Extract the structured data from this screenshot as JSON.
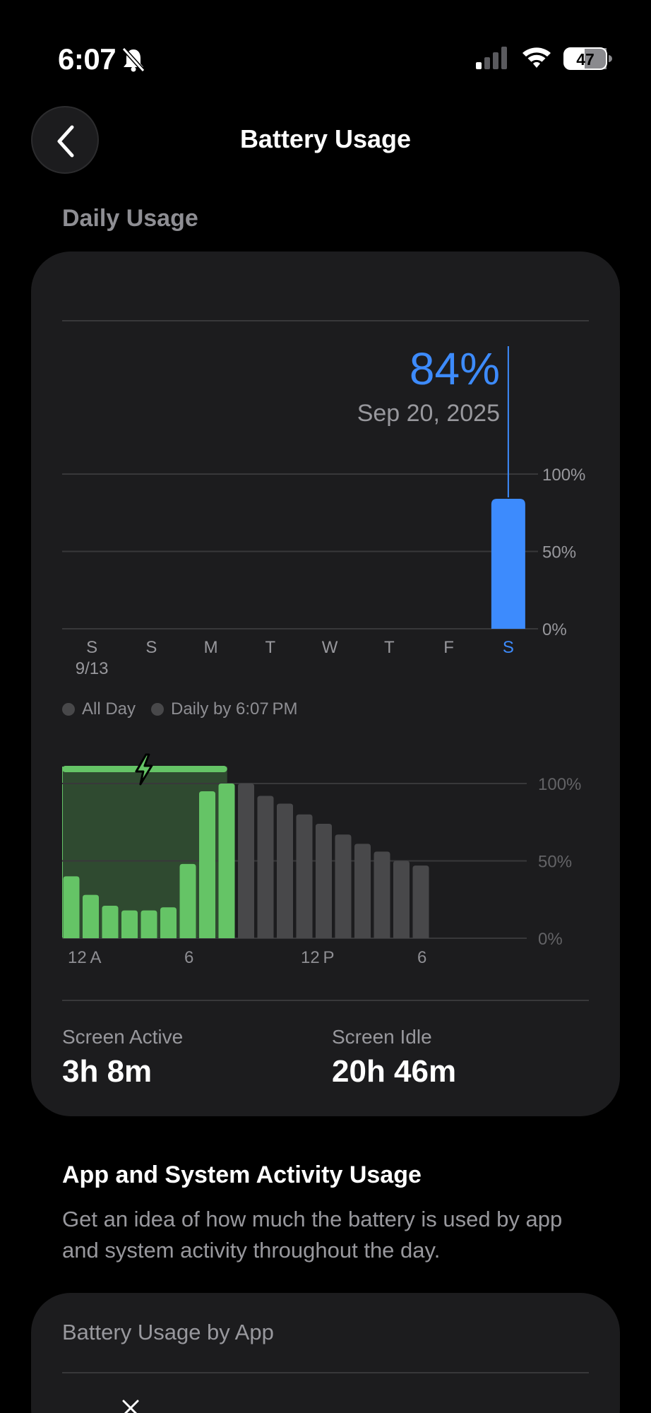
{
  "status_bar": {
    "time": "6:07",
    "battery_level": "47"
  },
  "nav": {
    "title": "Battery Usage"
  },
  "daily_usage": {
    "header": "Daily Usage",
    "tooltip": {
      "value": "84%",
      "date": "Sep 20, 2025"
    },
    "legend": {
      "all_day": "All Day",
      "daily_by": "Daily by 6:07 PM"
    },
    "screen_active": {
      "label": "Screen Active",
      "value": "3h 8m"
    },
    "screen_idle": {
      "label": "Screen Idle",
      "value": "20h 46m"
    }
  },
  "activity": {
    "title": "App and System Activity Usage",
    "description": "Get an idea of how much the battery is used by app and system activity throughout the day."
  },
  "app_usage": {
    "title": "Battery Usage by App"
  },
  "colors": {
    "accent_blue": "#3d8bfd",
    "charging_green": "#65c466",
    "bar_gray": "#48484a",
    "card_bg": "#1c1c1e"
  },
  "chart_data": [
    {
      "type": "bar",
      "categories": [
        "S",
        "S",
        "M",
        "T",
        "W",
        "T",
        "F",
        "S"
      ],
      "sub_labels": [
        "9/13",
        "",
        "",
        "",
        "",
        "",
        "",
        ""
      ],
      "values": [
        0,
        0,
        0,
        0,
        0,
        0,
        0,
        84
      ],
      "selected_index": 7,
      "yticks": [
        "100%",
        "50%",
        "0%"
      ],
      "ylim": [
        0,
        100
      ]
    },
    {
      "type": "bar",
      "x_ticks": [
        "12 A",
        "6",
        "12 P",
        "6"
      ],
      "yticks": [
        "100%",
        "50%",
        "0%"
      ],
      "ylim": [
        0,
        100
      ],
      "values": [
        40,
        28,
        21,
        18,
        18,
        20,
        48,
        95,
        100,
        100,
        92,
        87,
        80,
        74,
        67,
        61,
        56,
        50,
        47
      ],
      "charging_hours": [
        0,
        1,
        2,
        3,
        4,
        5,
        6,
        7,
        8
      ],
      "charging_span_hours": 8.5
    }
  ]
}
